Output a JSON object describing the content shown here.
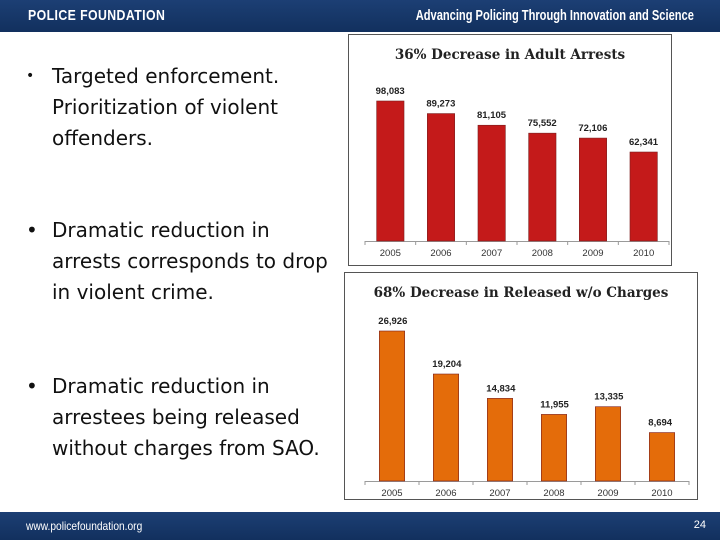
{
  "header": {
    "brand": "POLICE FOUNDATION",
    "tagline": "Advancing Policing Through Innovation and Science"
  },
  "bullets": [
    {
      "marker": "•",
      "text": "Targeted enforcement. Prioritization of violent offenders."
    },
    {
      "marker": "•",
      "text": "Dramatic reduction in arrests corresponds to drop in violent crime."
    },
    {
      "marker": "•",
      "text": "Dramatic reduction in arrestees being released without charges from SAO."
    }
  ],
  "footer": {
    "url": "www.policefoundation.org",
    "page": "24"
  },
  "colors": {
    "bar_red": "#c41a1a",
    "bar_orange": "#e46c0a",
    "banner": "#17386a"
  },
  "chart_data": [
    {
      "type": "bar",
      "title": "36% Decrease in Adult Arrests",
      "categories": [
        "2005",
        "2006",
        "2007",
        "2008",
        "2009",
        "2010"
      ],
      "values": [
        98083,
        89273,
        81105,
        75552,
        72106,
        62341
      ],
      "value_labels": [
        "98,083",
        "89,273",
        "81,105",
        "75,552",
        "72,106",
        "62,341"
      ],
      "ylim": [
        0,
        98083
      ],
      "xlabel": "",
      "ylabel": "",
      "color": "#c41a1a"
    },
    {
      "type": "bar",
      "title": "68% Decrease in Released w/o Charges",
      "categories": [
        "2005",
        "2006",
        "2007",
        "2008",
        "2009",
        "2010"
      ],
      "values": [
        26926,
        19204,
        14834,
        11955,
        13335,
        8694
      ],
      "value_labels": [
        "26,926",
        "19,204",
        "14,834",
        "11,955",
        "13,335",
        "8,694"
      ],
      "ylim": [
        0,
        26926
      ],
      "xlabel": "",
      "ylabel": "",
      "color": "#e46c0a"
    }
  ]
}
